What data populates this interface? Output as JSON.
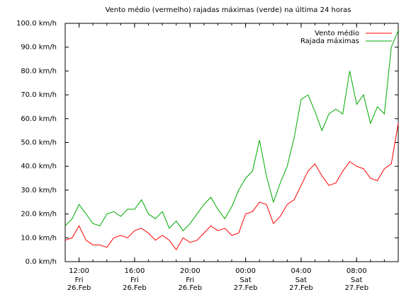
{
  "chart_data": {
    "type": "line",
    "title": "Vento médio (vermelho) rajadas máximas (verde) na última 24 horas",
    "xlabel": "",
    "ylabel": "",
    "unit": "km/h",
    "ylim": [
      0,
      100
    ],
    "yticks": [
      {
        "value": 0,
        "label": "0.0 km/h"
      },
      {
        "value": 10,
        "label": "10.0 km/h"
      },
      {
        "value": 20,
        "label": "20.0 km/h"
      },
      {
        "value": 30,
        "label": "30.0 km/h"
      },
      {
        "value": 40,
        "label": "40.0 km/h"
      },
      {
        "value": 50,
        "label": "50.0 km/h"
      },
      {
        "value": 60,
        "label": "60.0 km/h"
      },
      {
        "value": 70,
        "label": "70.0 km/h"
      },
      {
        "value": 80,
        "label": "80.0 km/h"
      },
      {
        "value": 90,
        "label": "90.0 km/h"
      },
      {
        "value": 100,
        "label": "100.0 km/h"
      }
    ],
    "x_axis": {
      "start": "2021-02-26 11:00",
      "end": "2021-02-27 11:00",
      "ticks": [
        {
          "time": "2021-02-26 12:00",
          "label": "12:00",
          "day": "Fri",
          "date": "26.Feb"
        },
        {
          "time": "2021-02-26 16:00",
          "label": "16:00",
          "day": "Fri",
          "date": "26.Feb"
        },
        {
          "time": "2021-02-26 20:00",
          "label": "20:00",
          "day": "Fri",
          "date": "26.Feb"
        },
        {
          "time": "2021-02-27 00:00",
          "label": "00:00",
          "day": "Sat",
          "date": "27.Feb"
        },
        {
          "time": "2021-02-27 04:00",
          "label": "04:00",
          "day": "Sat",
          "date": "27.Feb"
        },
        {
          "time": "2021-02-27 08:00",
          "label": "08:00",
          "day": "Sat",
          "date": "27.Feb"
        }
      ],
      "minor_tick_hours": 1
    },
    "grid": false,
    "legend_position": "top-right",
    "series": [
      {
        "name": "Vento médio",
        "color": "#ff0000",
        "x": [
          "2021-02-26 11:00",
          "2021-02-26 11:30",
          "2021-02-26 12:00",
          "2021-02-26 12:30",
          "2021-02-26 13:00",
          "2021-02-26 13:30",
          "2021-02-26 14:00",
          "2021-02-26 14:30",
          "2021-02-26 15:00",
          "2021-02-26 15:30",
          "2021-02-26 16:00",
          "2021-02-26 16:30",
          "2021-02-26 17:00",
          "2021-02-26 17:30",
          "2021-02-26 18:00",
          "2021-02-26 18:30",
          "2021-02-26 19:00",
          "2021-02-26 19:30",
          "2021-02-26 20:00",
          "2021-02-26 20:30",
          "2021-02-26 21:00",
          "2021-02-26 21:30",
          "2021-02-26 22:00",
          "2021-02-26 22:30",
          "2021-02-26 23:00",
          "2021-02-26 23:30",
          "2021-02-27 00:00",
          "2021-02-27 00:30",
          "2021-02-27 01:00",
          "2021-02-27 01:30",
          "2021-02-27 02:00",
          "2021-02-27 02:30",
          "2021-02-27 03:00",
          "2021-02-27 03:30",
          "2021-02-27 04:00",
          "2021-02-27 04:30",
          "2021-02-27 05:00",
          "2021-02-27 05:30",
          "2021-02-27 06:00",
          "2021-02-27 06:30",
          "2021-02-27 07:00",
          "2021-02-27 07:30",
          "2021-02-27 08:00",
          "2021-02-27 08:30",
          "2021-02-27 09:00",
          "2021-02-27 09:30",
          "2021-02-27 10:00",
          "2021-02-27 10:30",
          "2021-02-27 11:00"
        ],
        "values": [
          9,
          10,
          15,
          9,
          7,
          7,
          6,
          10,
          11,
          10,
          13,
          14,
          12,
          9,
          11,
          9,
          5,
          10,
          8,
          9,
          12,
          15,
          13,
          14,
          11,
          12,
          20,
          21,
          25,
          24,
          16,
          19,
          24,
          26,
          32,
          38,
          41,
          36,
          32,
          33,
          38,
          42,
          40,
          39,
          35,
          34,
          39,
          41,
          58
        ]
      },
      {
        "name": "Rajada máximas",
        "color": "#00aa00",
        "x": [
          "2021-02-26 11:00",
          "2021-02-26 11:30",
          "2021-02-26 12:00",
          "2021-02-26 12:30",
          "2021-02-26 13:00",
          "2021-02-26 13:30",
          "2021-02-26 14:00",
          "2021-02-26 14:30",
          "2021-02-26 15:00",
          "2021-02-26 15:30",
          "2021-02-26 16:00",
          "2021-02-26 16:30",
          "2021-02-26 17:00",
          "2021-02-26 17:30",
          "2021-02-26 18:00",
          "2021-02-26 18:30",
          "2021-02-26 19:00",
          "2021-02-26 19:30",
          "2021-02-26 20:00",
          "2021-02-26 20:30",
          "2021-02-26 21:00",
          "2021-02-26 21:30",
          "2021-02-26 22:00",
          "2021-02-26 22:30",
          "2021-02-26 23:00",
          "2021-02-26 23:30",
          "2021-02-27 00:00",
          "2021-02-27 00:30",
          "2021-02-27 01:00",
          "2021-02-27 01:30",
          "2021-02-27 02:00",
          "2021-02-27 02:30",
          "2021-02-27 03:00",
          "2021-02-27 03:30",
          "2021-02-27 04:00",
          "2021-02-27 04:30",
          "2021-02-27 05:00",
          "2021-02-27 05:30",
          "2021-02-27 06:00",
          "2021-02-27 06:30",
          "2021-02-27 07:00",
          "2021-02-27 07:30",
          "2021-02-27 08:00",
          "2021-02-27 08:30",
          "2021-02-27 09:00",
          "2021-02-27 09:30",
          "2021-02-27 10:00",
          "2021-02-27 10:30",
          "2021-02-27 11:00"
        ],
        "values": [
          15,
          18,
          24,
          20,
          16,
          15,
          20,
          21,
          19,
          22,
          22,
          26,
          20,
          18,
          21,
          14,
          17,
          13,
          16,
          20,
          24,
          27,
          22,
          18,
          23,
          30,
          35,
          38,
          51,
          36,
          25,
          33,
          40,
          52,
          68,
          70,
          63,
          55,
          62,
          64,
          62,
          80,
          66,
          70,
          58,
          65,
          62,
          90,
          97
        ]
      }
    ]
  }
}
